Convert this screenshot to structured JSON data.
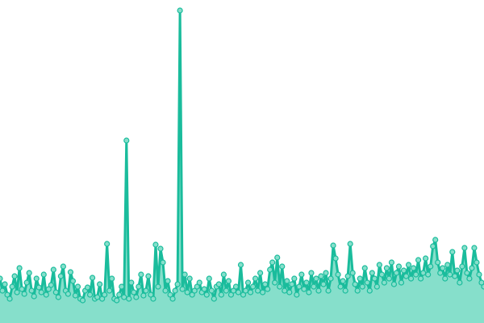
{
  "chart_data": {
    "type": "area",
    "title": "",
    "xlabel": "",
    "ylabel": "",
    "ylim": [
      0,
      400
    ],
    "grid": false,
    "legend": "none",
    "colors": {
      "line": "#1abc9c",
      "fill": "#86dfcb",
      "marker_fill": "#86dfcb",
      "marker_stroke": "#1abc9c"
    },
    "values": [
      55,
      40,
      48,
      35,
      30,
      45,
      58,
      38,
      68,
      42,
      36,
      50,
      62,
      40,
      33,
      55,
      44,
      38,
      60,
      35,
      42,
      47,
      66,
      38,
      32,
      58,
      70,
      40,
      36,
      63,
      52,
      34,
      45,
      30,
      28,
      40,
      44,
      35,
      56,
      30,
      32,
      48,
      30,
      35,
      98,
      40,
      55,
      30,
      28,
      35,
      45,
      32,
      226,
      30,
      50,
      38,
      32,
      45,
      60,
      34,
      40,
      58,
      35,
      30,
      97,
      45,
      92,
      75,
      40,
      52,
      35,
      30,
      40,
      48,
      387,
      42,
      60,
      38,
      55,
      35,
      40,
      45,
      50,
      38,
      42,
      35,
      55,
      40,
      30,
      45,
      48,
      35,
      60,
      40,
      52,
      35,
      40,
      45,
      38,
      72,
      35,
      40,
      50,
      38,
      45,
      55,
      40,
      62,
      38,
      48,
      42,
      66,
      75,
      50,
      81,
      45,
      70,
      40,
      52,
      38,
      48,
      55,
      35,
      45,
      60,
      42,
      50,
      38,
      62,
      45,
      55,
      40,
      58,
      48,
      62,
      40,
      55,
      96,
      80,
      60,
      45,
      52,
      40,
      58,
      98,
      62,
      48,
      40,
      55,
      45,
      68,
      50,
      40,
      62,
      55,
      45,
      72,
      60,
      50,
      68,
      55,
      75,
      48,
      62,
      70,
      50,
      65,
      58,
      72,
      55,
      68,
      60,
      78,
      55,
      62,
      80,
      60,
      70,
      95,
      103,
      75,
      62,
      68,
      55,
      72,
      60,
      88,
      58,
      65,
      50,
      70,
      93,
      62,
      55,
      68,
      93,
      75,
      60,
      50,
      45
    ]
  }
}
